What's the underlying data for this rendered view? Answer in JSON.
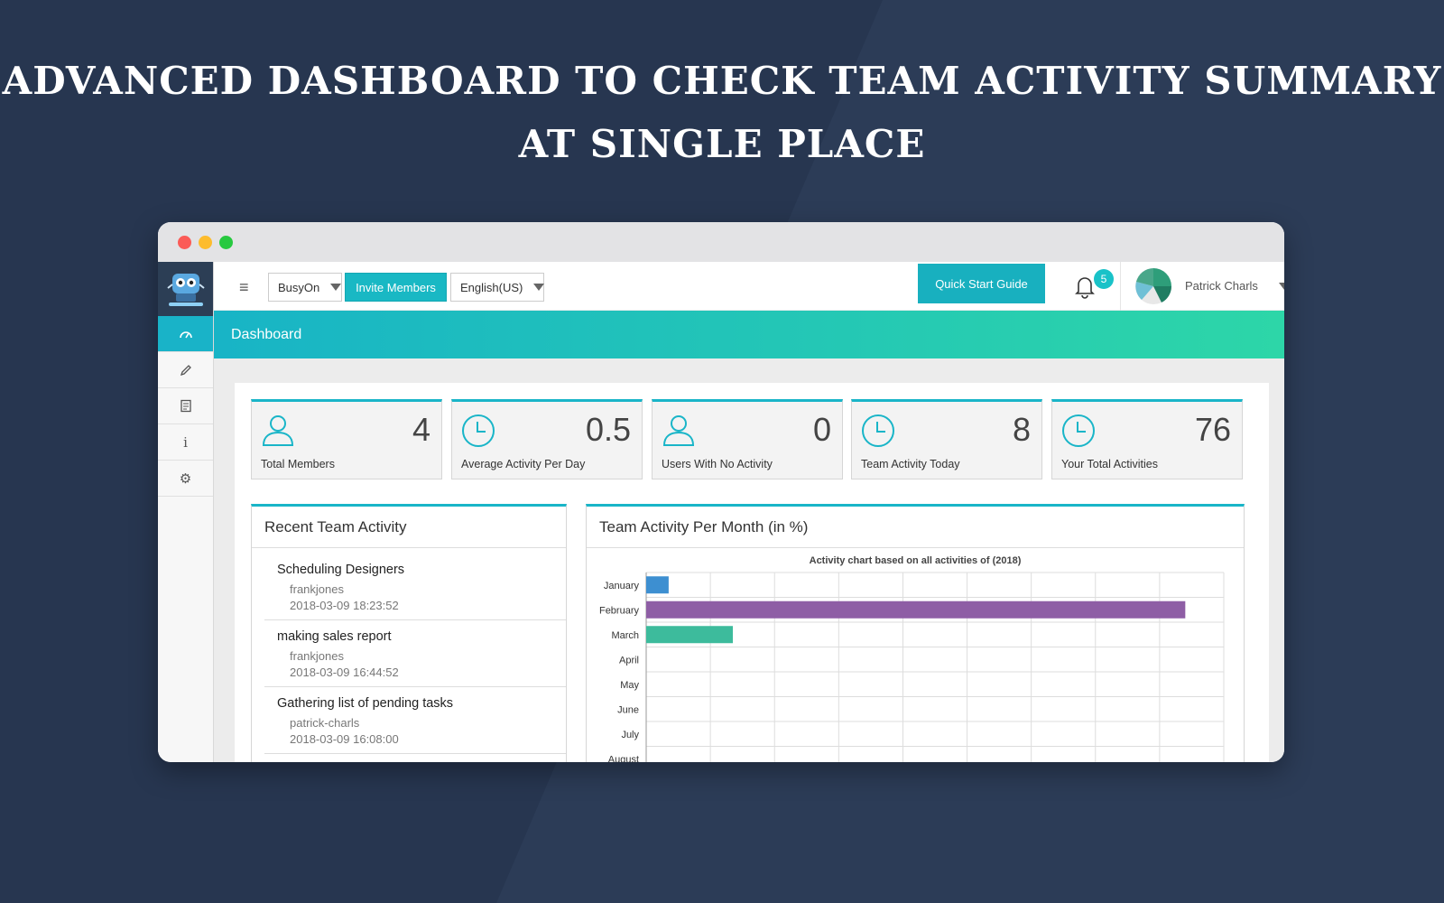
{
  "headline": {
    "line1": "ADVANCED DASHBOARD TO CHECK TEAM ACTIVITY SUMMARY",
    "line2": "AT SINGLE PLACE"
  },
  "topbar": {
    "company_select": "BusyOn",
    "invite_label": "Invite Members",
    "language_select": "English(US)",
    "quick_start_label": "Quick Start Guide",
    "notification_count": "5",
    "user_name": "Patrick Charls"
  },
  "sidebar": {
    "items": [
      {
        "icon": "dashboard-gauge-icon",
        "active": true
      },
      {
        "icon": "pencil-icon",
        "active": false
      },
      {
        "icon": "document-icon",
        "active": false
      },
      {
        "icon": "info-icon",
        "active": false
      },
      {
        "icon": "gear-icon",
        "active": false
      }
    ]
  },
  "page": {
    "title": "Dashboard"
  },
  "stats": [
    {
      "value": "4",
      "label": "Total Members",
      "icon": "user-icon"
    },
    {
      "value": "0.5",
      "label": "Average Activity Per Day",
      "icon": "clock-icon"
    },
    {
      "value": "0",
      "label": "Users With No Activity",
      "icon": "user-icon"
    },
    {
      "value": "8",
      "label": "Team Activity Today",
      "icon": "clock-icon"
    },
    {
      "value": "76",
      "label": "Your Total Activities",
      "icon": "clock-icon"
    }
  ],
  "recent_activity": {
    "title": "Recent Team Activity",
    "items": [
      {
        "title": "Scheduling Designers",
        "user": "frankjones",
        "time": "2018-03-09 18:23:52"
      },
      {
        "title": "making sales report",
        "user": "frankjones",
        "time": "2018-03-09 16:44:52"
      },
      {
        "title": "Gathering list of pending tasks",
        "user": "patrick-charls",
        "time": "2018-03-09 16:08:00"
      }
    ]
  },
  "activity_chart": {
    "title": "Team Activity Per Month (in %)",
    "caption": "Activity chart based on all activities of (2018)"
  },
  "chart_data": {
    "type": "bar",
    "orientation": "horizontal",
    "title": "Activity chart based on all activities of (2018)",
    "categories": [
      "January",
      "February",
      "March",
      "April",
      "May",
      "June",
      "July",
      "August"
    ],
    "values": [
      3.5,
      84,
      13.5,
      0,
      0,
      0,
      0,
      0
    ],
    "colors": [
      "#3d8fd1",
      "#8e5ea5",
      "#3dbb9c",
      "#cccccc",
      "#cccccc",
      "#cccccc",
      "#cccccc",
      "#cccccc"
    ],
    "xlim": [
      0,
      90
    ],
    "grid": true
  }
}
